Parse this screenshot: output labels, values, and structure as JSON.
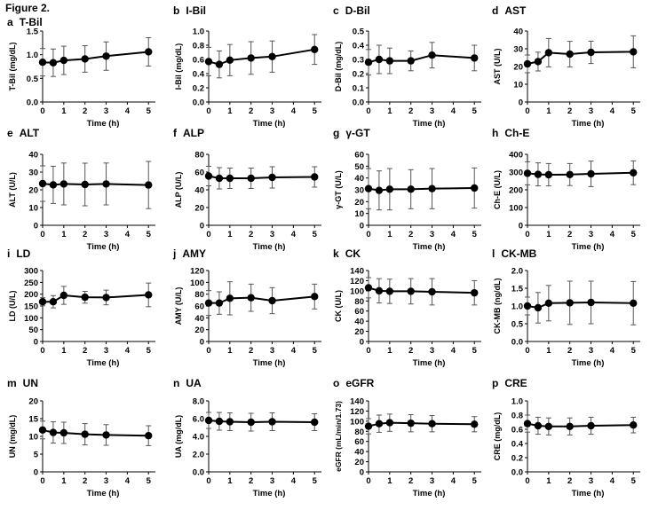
{
  "figure_title": "Figure 2.",
  "chart_data": [
    {
      "type": "line",
      "panel": "a",
      "title": "T-Bil",
      "ylabel": "T-Bil (mg/dL)",
      "xlabel": "Time (h)",
      "x": [
        0,
        0.5,
        1,
        2,
        3,
        5
      ],
      "y": [
        0.84,
        0.83,
        0.88,
        0.91,
        0.97,
        1.06
      ],
      "error": [
        0.29,
        0.29,
        0.3,
        0.28,
        0.3,
        0.3
      ],
      "ylim": [
        0,
        1.5
      ],
      "yticks": [
        "0.0",
        "0.5",
        "1.0",
        "1.5"
      ],
      "xticks": [
        "0",
        "1",
        "2",
        "3",
        "4",
        "5"
      ]
    },
    {
      "type": "line",
      "panel": "b",
      "title": "I-Bil",
      "ylabel": "I-Bil (mg/dL)",
      "xlabel": "Time (h)",
      "x": [
        0,
        0.5,
        1,
        2,
        3,
        5
      ],
      "y": [
        0.57,
        0.53,
        0.59,
        0.62,
        0.64,
        0.74
      ],
      "error": [
        0.2,
        0.19,
        0.22,
        0.23,
        0.22,
        0.21
      ],
      "ylim": [
        0,
        1.0
      ],
      "yticks": [
        "0.0",
        "0.2",
        "0.4",
        "0.6",
        "0.8",
        "1.0"
      ],
      "xticks": [
        "0",
        "1",
        "2",
        "3",
        "4",
        "5"
      ]
    },
    {
      "type": "line",
      "panel": "c",
      "title": "D-Bil",
      "ylabel": "D-Bil (mg/dL)",
      "xlabel": "Time (h)",
      "x": [
        0,
        0.5,
        1,
        2,
        3,
        5
      ],
      "y": [
        0.28,
        0.3,
        0.29,
        0.29,
        0.33,
        0.31
      ],
      "error": [
        0.09,
        0.1,
        0.09,
        0.07,
        0.09,
        0.09
      ],
      "ylim": [
        0,
        0.5
      ],
      "yticks": [
        "0.0",
        "0.1",
        "0.2",
        "0.3",
        "0.4",
        "0.5"
      ],
      "xticks": [
        "0",
        "1",
        "2",
        "3",
        "4",
        "5"
      ]
    },
    {
      "type": "line",
      "panel": "d",
      "title": "AST",
      "ylabel": "AST (U/L)",
      "xlabel": "Time (h)",
      "x": [
        0,
        0.5,
        1,
        2,
        3,
        5
      ],
      "y": [
        21.5,
        22.8,
        27.8,
        27.0,
        28.0,
        28.3
      ],
      "error": [
        5.0,
        5.3,
        8.0,
        7.2,
        6.3,
        9.0
      ],
      "ylim": [
        0,
        40
      ],
      "yticks": [
        "0",
        "10",
        "20",
        "30",
        "40"
      ],
      "xticks": [
        "0",
        "1",
        "2",
        "3",
        "4",
        "5"
      ]
    },
    {
      "type": "line",
      "panel": "e",
      "title": "ALT",
      "ylabel": "ALT (U/L)",
      "xlabel": "Time (h)",
      "x": [
        0,
        0.5,
        1,
        2,
        3,
        5
      ],
      "y": [
        23.5,
        22.8,
        23.3,
        23.0,
        23.3,
        22.7
      ],
      "error": [
        10.0,
        10.5,
        11.8,
        12.0,
        11.8,
        13.3
      ],
      "ylim": [
        0,
        40
      ],
      "yticks": [
        "0",
        "10",
        "20",
        "30",
        "40"
      ],
      "xticks": [
        "0",
        "1",
        "2",
        "3",
        "4",
        "5"
      ]
    },
    {
      "type": "line",
      "panel": "f",
      "title": "ALP",
      "ylabel": "ALP (U/L)",
      "xlabel": "Time (h)",
      "x": [
        0,
        0.5,
        1,
        2,
        3,
        5
      ],
      "y": [
        55.5,
        53,
        53,
        53,
        54,
        54.5
      ],
      "error": [
        11,
        12,
        11.5,
        11.5,
        12,
        11.5
      ],
      "ylim": [
        0,
        80
      ],
      "yticks": [
        "0",
        "20",
        "40",
        "60",
        "80"
      ],
      "xticks": [
        "0",
        "1",
        "2",
        "3",
        "4",
        "5"
      ]
    },
    {
      "type": "line",
      "panel": "g",
      "title": "γ-GT",
      "ylabel": "γ-GT (U/L)",
      "xlabel": "Time (h)",
      "x": [
        0,
        0.5,
        1,
        2,
        3,
        5
      ],
      "y": [
        31,
        29.5,
        30.5,
        30.5,
        31,
        31.5
      ],
      "error": [
        17,
        16.5,
        17.5,
        16.5,
        17,
        17
      ],
      "ylim": [
        0,
        60
      ],
      "yticks": [
        "0",
        "10",
        "20",
        "30",
        "40",
        "50",
        "60"
      ],
      "xticks": [
        "0",
        "1",
        "2",
        "3",
        "4",
        "5"
      ]
    },
    {
      "type": "line",
      "panel": "h",
      "title": "Ch-E",
      "ylabel": "Ch-E (U/L)",
      "xlabel": "Time (h)",
      "x": [
        0,
        0.5,
        1,
        2,
        3,
        5
      ],
      "y": [
        293,
        287,
        285,
        286,
        290,
        296
      ],
      "error": [
        65,
        65,
        63,
        62,
        72,
        67
      ],
      "ylim": [
        0,
        400
      ],
      "yticks": [
        "0",
        "100",
        "200",
        "300",
        "400"
      ],
      "xticks": [
        "0",
        "1",
        "2",
        "3",
        "4",
        "5"
      ]
    },
    {
      "type": "line",
      "panel": "i",
      "title": "LD",
      "ylabel": "LD (U/L)",
      "xlabel": "Time (h)",
      "x": [
        0,
        0.5,
        1,
        2,
        3,
        5
      ],
      "y": [
        168,
        168,
        195,
        187,
        186,
        197
      ],
      "error": [
        17,
        26,
        38,
        25,
        31,
        50
      ],
      "ylim": [
        0,
        300
      ],
      "yticks": [
        "0",
        "50",
        "100",
        "150",
        "200",
        "250",
        "300"
      ],
      "xticks": [
        "0",
        "1",
        "2",
        "3",
        "4",
        "5"
      ]
    },
    {
      "type": "line",
      "panel": "j",
      "title": "AMY",
      "ylabel": "AMY (U/L)",
      "xlabel": "Time (h)",
      "x": [
        0,
        0.5,
        1,
        2,
        3,
        5
      ],
      "y": [
        65,
        65,
        73,
        74,
        69,
        76
      ],
      "error": [
        21,
        19,
        28,
        23,
        22,
        21
      ],
      "ylim": [
        0,
        120
      ],
      "yticks": [
        "0",
        "20",
        "40",
        "60",
        "80",
        "100",
        "120"
      ],
      "xticks": [
        "0",
        "1",
        "2",
        "3",
        "4",
        "5"
      ]
    },
    {
      "type": "line",
      "panel": "k",
      "title": "CK",
      "ylabel": "CK (U/L)",
      "xlabel": "Time (h)",
      "x": [
        0,
        0.5,
        1,
        2,
        3,
        5
      ],
      "y": [
        106,
        100,
        99,
        99,
        98,
        96
      ],
      "error": [
        20,
        24,
        24,
        25,
        26,
        24
      ],
      "ylim": [
        0,
        140
      ],
      "yticks": [
        "0",
        "20",
        "40",
        "60",
        "80",
        "100",
        "120",
        "140"
      ],
      "xticks": [
        "0",
        "1",
        "2",
        "3",
        "4",
        "5"
      ]
    },
    {
      "type": "line",
      "panel": "l",
      "title": "CK-MB",
      "ylabel": "CK-MB (ng/dL)",
      "xlabel": "Time (h)",
      "x": [
        0,
        0.5,
        1,
        2,
        3,
        5
      ],
      "y": [
        1.0,
        0.95,
        1.08,
        1.09,
        1.1,
        1.08
      ],
      "error": [
        0.25,
        0.43,
        0.5,
        0.61,
        0.6,
        0.61
      ],
      "ylim": [
        0,
        2.0
      ],
      "yticks": [
        "0.0",
        "0.5",
        "1.0",
        "1.5",
        "2.0"
      ],
      "xticks": [
        "0",
        "1",
        "2",
        "3",
        "4",
        "5"
      ]
    },
    {
      "type": "line",
      "panel": "m",
      "title": "UN",
      "ylabel": "UN (mg/dL)",
      "xlabel": "Time (h)",
      "x": [
        0,
        0.5,
        1,
        2,
        3,
        5
      ],
      "y": [
        11.8,
        11.1,
        11.0,
        10.6,
        10.4,
        10.2
      ],
      "error": [
        2.5,
        3.0,
        3.0,
        3.0,
        2.9,
        2.8
      ],
      "ylim": [
        0,
        20
      ],
      "yticks": [
        "0",
        "5",
        "10",
        "15",
        "20"
      ],
      "xticks": [
        "0",
        "1",
        "2",
        "3",
        "4",
        "5"
      ]
    },
    {
      "type": "line",
      "panel": "n",
      "title": "UA",
      "ylabel": "UA (mg/dL)",
      "xlabel": "Time (h)",
      "x": [
        0,
        0.5,
        1,
        2,
        3,
        5
      ],
      "y": [
        5.8,
        5.7,
        5.65,
        5.6,
        5.65,
        5.6
      ],
      "error": [
        0.9,
        1.0,
        1.0,
        1.0,
        1.0,
        0.95
      ],
      "ylim": [
        0,
        8
      ],
      "yticks": [
        "0.0",
        "2.0",
        "4.0",
        "6.0",
        "8.0"
      ],
      "xticks": [
        "0",
        "1",
        "2",
        "3",
        "4",
        "5"
      ]
    },
    {
      "type": "line",
      "panel": "o",
      "title": "eGFR",
      "ylabel": "eGFR (mL/min/1.73)",
      "xlabel": "Time (h)",
      "x": [
        0,
        0.5,
        1,
        2,
        3,
        5
      ],
      "y": [
        90,
        95,
        97,
        96,
        95,
        94
      ],
      "error": [
        15,
        17,
        17,
        17,
        16,
        15
      ],
      "ylim": [
        0,
        140
      ],
      "yticks": [
        "0",
        "20",
        "40",
        "60",
        "80",
        "100",
        "120",
        "140"
      ],
      "xticks": [
        "0",
        "1",
        "2",
        "3",
        "4",
        "5"
      ]
    },
    {
      "type": "line",
      "panel": "p",
      "title": "CRE",
      "ylabel": "CRE (mg/dL)",
      "xlabel": "Time (h)",
      "x": [
        0,
        0.5,
        1,
        2,
        3,
        5
      ],
      "y": [
        0.68,
        0.65,
        0.64,
        0.64,
        0.65,
        0.66
      ],
      "error": [
        0.12,
        0.12,
        0.12,
        0.12,
        0.12,
        0.11
      ],
      "ylim": [
        0,
        1.0
      ],
      "yticks": [
        "0.0",
        "0.2",
        "0.4",
        "0.6",
        "0.8",
        "1.0"
      ],
      "xticks": [
        "0",
        "1",
        "2",
        "3",
        "4",
        "5"
      ]
    }
  ],
  "colors": {
    "line": "#000000",
    "error_bar": "#555555"
  }
}
